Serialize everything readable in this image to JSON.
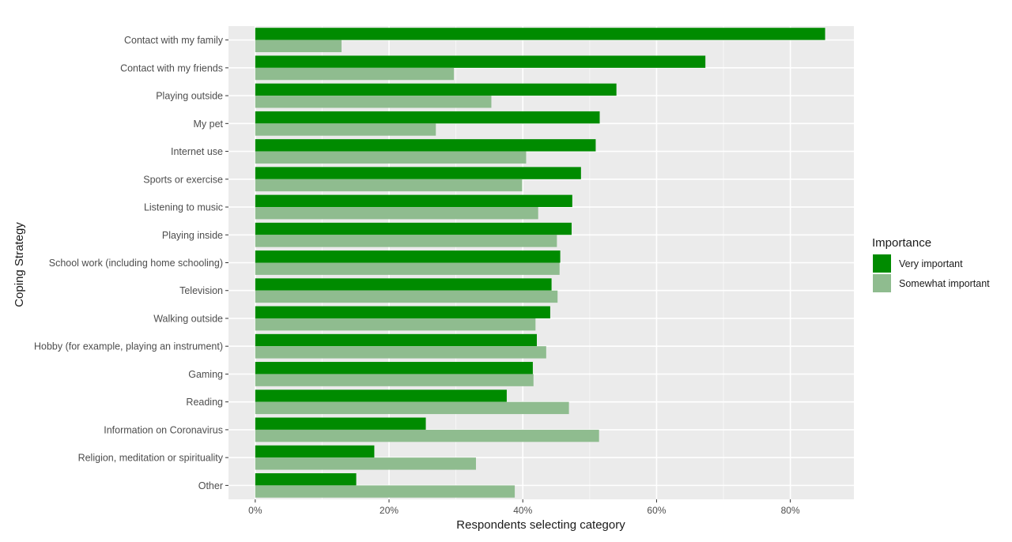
{
  "chart_data": {
    "type": "bar",
    "orientation": "horizontal",
    "xlabel": "Respondents selecting category",
    "ylabel": "Coping Strategy",
    "xlim": [
      -4,
      89.5
    ],
    "x_ticks": [
      0,
      20,
      40,
      60,
      80
    ],
    "x_tick_labels": [
      "0%",
      "20%",
      "40%",
      "60%",
      "80%"
    ],
    "grid": true,
    "legend_position": "right",
    "legend_title": "Importance",
    "categories": [
      "Contact with my family",
      "Contact with my friends",
      "Playing outside",
      "My pet",
      "Internet use",
      "Sports or exercise",
      "Listening to music",
      "Playing inside",
      "School work (including home schooling)",
      "Television",
      "Walking outside",
      "Hobby (for example, playing an instrument)",
      "Gaming",
      "Reading",
      "Information on Coronavirus",
      "Religion, meditation or spirituality",
      "Other"
    ],
    "series": [
      {
        "name": "Very important",
        "color": "#008b00",
        "values": [
          85.2,
          67.3,
          54.0,
          51.5,
          50.9,
          48.7,
          47.4,
          47.3,
          45.6,
          44.3,
          44.1,
          42.1,
          41.5,
          37.6,
          25.5,
          17.8,
          15.1
        ]
      },
      {
        "name": "Somewhat important",
        "color": "#8fbc8f",
        "values": [
          12.9,
          29.7,
          35.3,
          27.0,
          40.5,
          39.9,
          42.3,
          45.1,
          45.5,
          45.2,
          41.9,
          43.5,
          41.6,
          46.9,
          51.4,
          33.0,
          38.8
        ]
      }
    ]
  }
}
